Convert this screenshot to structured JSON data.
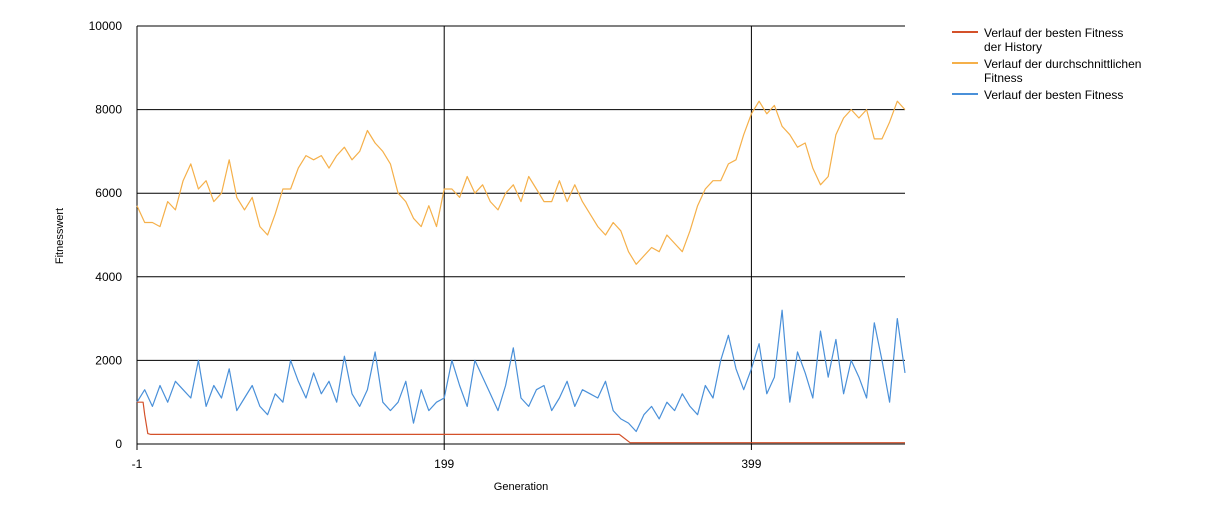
{
  "chart_data": {
    "type": "line",
    "xlabel": "Generation",
    "ylabel": "Fitnesswert",
    "xlim": [
      -1,
      499
    ],
    "ylim": [
      0,
      10000
    ],
    "x_ticks": [
      -1,
      199,
      399
    ],
    "y_ticks": [
      0,
      2000,
      4000,
      6000,
      8000,
      10000
    ],
    "x_tick_labels": [
      "-1",
      "199",
      "399"
    ],
    "y_tick_labels": [
      "0",
      "2000",
      "4000",
      "6000",
      "8000",
      "10000"
    ],
    "grid": true,
    "legend_position": "top-right",
    "series": [
      {
        "name_lines": [
          "Verlauf der besten Fitness",
          "der History"
        ],
        "color": "#d4512a",
        "x": [
          -1,
          3,
          4,
          6,
          8,
          312,
          313,
          320,
          499
        ],
        "y": [
          1000,
          1000,
          700,
          250,
          230,
          230,
          230,
          30,
          30
        ]
      },
      {
        "name_lines": [
          "Verlauf der durchschnittlichen",
          "Fitness"
        ],
        "color": "#f5b04a",
        "x": [
          -1,
          4,
          9,
          14,
          19,
          24,
          29,
          34,
          39,
          44,
          49,
          54,
          59,
          64,
          69,
          74,
          79,
          84,
          89,
          94,
          99,
          104,
          109,
          114,
          119,
          124,
          129,
          134,
          139,
          144,
          149,
          154,
          159,
          164,
          169,
          174,
          179,
          184,
          189,
          194,
          199,
          204,
          209,
          214,
          219,
          224,
          229,
          234,
          239,
          244,
          249,
          254,
          259,
          264,
          269,
          274,
          279,
          284,
          289,
          294,
          299,
          304,
          309,
          314,
          319,
          324,
          329,
          334,
          339,
          344,
          349,
          354,
          359,
          364,
          369,
          374,
          379,
          384,
          389,
          394,
          399,
          404,
          409,
          414,
          419,
          424,
          429,
          434,
          439,
          444,
          449,
          454,
          459,
          464,
          469,
          474,
          479,
          484,
          489,
          494,
          499
        ],
        "y": [
          5700,
          5300,
          5300,
          5200,
          5800,
          5600,
          6300,
          6700,
          6100,
          6300,
          5800,
          6000,
          6800,
          5900,
          5600,
          5900,
          5200,
          5000,
          5500,
          6100,
          6100,
          6600,
          6900,
          6800,
          6900,
          6600,
          6900,
          7100,
          6800,
          7000,
          7500,
          7200,
          7000,
          6700,
          6000,
          5800,
          5400,
          5200,
          5700,
          5200,
          6100,
          6100,
          5900,
          6400,
          6000,
          6200,
          5800,
          5600,
          6000,
          6200,
          5800,
          6400,
          6100,
          5800,
          5800,
          6300,
          5800,
          6200,
          5800,
          5500,
          5200,
          5000,
          5300,
          5100,
          4600,
          4300,
          4500,
          4700,
          4600,
          5000,
          4800,
          4600,
          5100,
          5700,
          6100,
          6300,
          6300,
          6700,
          6800,
          7400,
          7900,
          8200,
          7900,
          8100,
          7600,
          7400,
          7100,
          7200,
          6600,
          6200,
          6400,
          7400,
          7800,
          8000,
          7800,
          8000,
          7300,
          7300,
          7700,
          8200,
          8000
        ]
      },
      {
        "name_lines": [
          "Verlauf der besten Fitness"
        ],
        "color": "#4a90d9",
        "x": [
          -1,
          4,
          9,
          14,
          19,
          24,
          29,
          34,
          39,
          44,
          49,
          54,
          59,
          64,
          69,
          74,
          79,
          84,
          89,
          94,
          99,
          104,
          109,
          114,
          119,
          124,
          129,
          134,
          139,
          144,
          149,
          154,
          159,
          164,
          169,
          174,
          179,
          184,
          189,
          194,
          199,
          204,
          209,
          214,
          219,
          224,
          229,
          234,
          239,
          244,
          249,
          254,
          259,
          264,
          269,
          274,
          279,
          284,
          289,
          294,
          299,
          304,
          309,
          314,
          319,
          324,
          329,
          334,
          339,
          344,
          349,
          354,
          359,
          364,
          369,
          374,
          379,
          384,
          389,
          394,
          399,
          404,
          409,
          414,
          419,
          424,
          429,
          434,
          439,
          444,
          449,
          454,
          459,
          464,
          469,
          474,
          479,
          484,
          489,
          494,
          499
        ],
        "y": [
          1000,
          1300,
          900,
          1400,
          1000,
          1500,
          1300,
          1100,
          2000,
          900,
          1400,
          1100,
          1800,
          800,
          1100,
          1400,
          900,
          700,
          1200,
          1000,
          2000,
          1500,
          1100,
          1700,
          1200,
          1500,
          1000,
          2100,
          1200,
          900,
          1300,
          2200,
          1000,
          800,
          1000,
          1500,
          500,
          1300,
          800,
          1000,
          1100,
          2000,
          1400,
          900,
          2000,
          1600,
          1200,
          800,
          1400,
          2300,
          1100,
          900,
          1300,
          1400,
          800,
          1100,
          1500,
          900,
          1300,
          1200,
          1100,
          1500,
          800,
          600,
          500,
          300,
          700,
          900,
          600,
          1000,
          800,
          1200,
          900,
          700,
          1400,
          1100,
          2000,
          2600,
          1800,
          1300,
          1800,
          2400,
          1200,
          1600,
          3200,
          1000,
          2200,
          1700,
          1100,
          2700,
          1600,
          2500,
          1200,
          2000,
          1600,
          1100,
          2900,
          2000,
          1000,
          3000,
          1700
        ]
      }
    ]
  }
}
